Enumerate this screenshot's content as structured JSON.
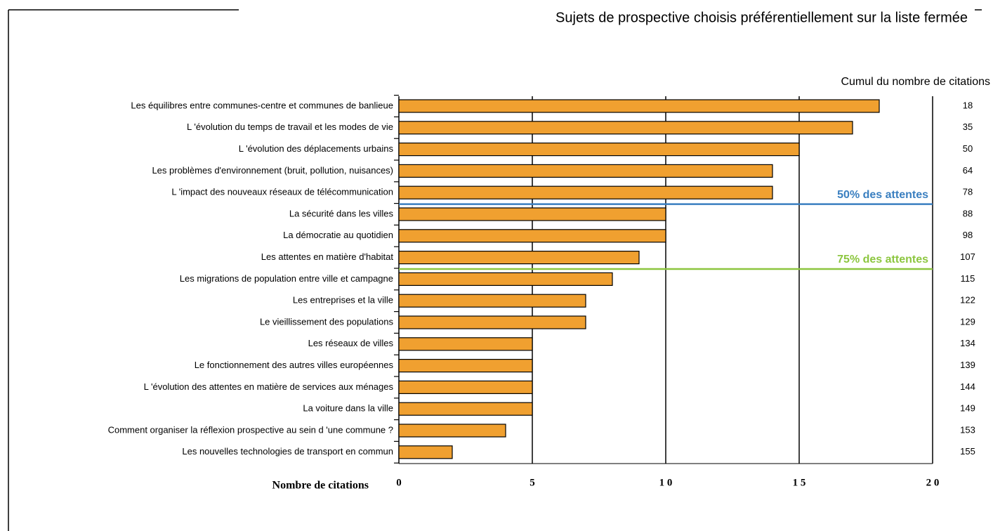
{
  "chart_data": {
    "type": "hbar",
    "title": "Sujets de prospective choisis préférentiellement sur la liste fermée",
    "categories": [
      "Les équilibres entre communes-centre et communes de banlieue",
      "L 'évolution du temps de travail et les modes de vie",
      "L 'évolution des déplacements urbains",
      "Les problèmes d'environnement (bruit, pollution, nuisances)",
      "L 'impact des nouveaux réseaux de télécommunication",
      "La sécurité dans les villes",
      "La démocratie au quotidien",
      "Les attentes en matière d'habitat",
      "Les migrations de population entre ville et campagne",
      "Les entreprises et la ville",
      "Le vieillissement des populations",
      "Les réseaux de villes",
      "Le fonctionnement des autres villes européennes",
      "L 'évolution des attentes en matière de services aux ménages",
      "La voiture dans la ville",
      "Comment organiser la réflexion prospective au sein d 'une commune ?",
      "Les nouvelles technologies de transport en commun"
    ],
    "values": [
      18,
      17,
      15,
      14,
      14,
      10,
      10,
      9,
      8,
      7,
      7,
      5,
      5,
      5,
      5,
      4,
      2
    ],
    "color": "#f0a030",
    "cumul_title": "Cumul du nombre de citations",
    "cumul": [
      18,
      35,
      50,
      64,
      78,
      88,
      98,
      107,
      115,
      122,
      129,
      134,
      139,
      144,
      149,
      153,
      155
    ],
    "annotations": [
      {
        "text": "50% des attentes",
        "color": "#3a7fc0"
      },
      {
        "text": "75% des attentes",
        "color": "#8cc63f"
      }
    ],
    "xlabel": "Nombre de citations",
    "xlim": [
      0,
      20
    ],
    "xticks": [
      0,
      5,
      {
        "value": 10,
        "label": "1 0"
      },
      {
        "value": 15,
        "label": "1 5"
      },
      {
        "value": 20,
        "label": "2 0"
      }
    ],
    "grid": true
  }
}
